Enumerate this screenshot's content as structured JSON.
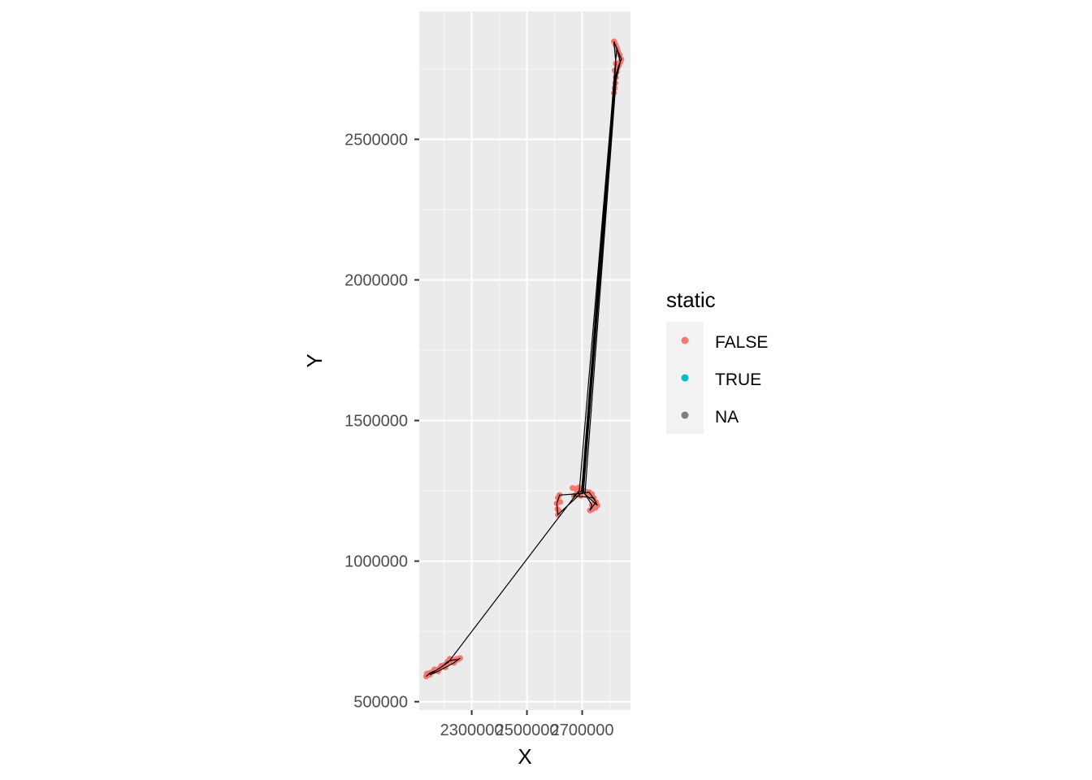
{
  "chart_data": {
    "type": "scatter",
    "xlabel": "X",
    "ylabel": "Y",
    "xlim": [
      2110000,
      2875000
    ],
    "ylim": [
      470000,
      2955000
    ],
    "x_ticks": [
      2300000,
      2500000,
      2700000
    ],
    "y_ticks": [
      500000,
      1000000,
      1500000,
      2000000,
      2500000
    ],
    "x_tick_labels": [
      "2300000",
      "2500000",
      "2700000"
    ],
    "y_tick_labels": [
      "500000",
      "1000000",
      "1500000",
      "2000000",
      "2500000"
    ],
    "grid": true,
    "legend": {
      "title": "static",
      "position": "right",
      "entries": [
        {
          "label": "FALSE",
          "color": "#F8766D"
        },
        {
          "label": "TRUE",
          "color": "#00BFC4"
        },
        {
          "label": "NA",
          "color": "#7F7F7F"
        }
      ]
    },
    "point_color": "#F8766D",
    "path_color": "#000000",
    "series": [
      {
        "static": "FALSE",
        "points": [
          [
            2135000,
            590000
          ],
          [
            2142000,
            598000
          ],
          [
            2150000,
            603000
          ],
          [
            2160000,
            607000
          ],
          [
            2172000,
            612000
          ],
          [
            2183000,
            618000
          ],
          [
            2192000,
            624000
          ],
          [
            2200000,
            630000
          ],
          [
            2212000,
            642000
          ],
          [
            2220000,
            652000
          ],
          [
            2230000,
            648000
          ],
          [
            2240000,
            645000
          ],
          [
            2250000,
            650000
          ],
          [
            2258000,
            655000
          ],
          [
            2235000,
            638000
          ],
          [
            2205000,
            622000
          ],
          [
            2178000,
            608000
          ],
          [
            2148000,
            596000
          ],
          [
            2138000,
            600000
          ],
          [
            2165000,
            615000
          ],
          [
            2190000,
            628000
          ],
          [
            2215000,
            640000
          ],
          [
            2245000,
            652000
          ],
          [
            2612000,
            1165000
          ],
          [
            2610000,
            1185000
          ],
          [
            2608000,
            1205000
          ],
          [
            2612000,
            1225000
          ],
          [
            2618000,
            1235000
          ],
          [
            2620000,
            1210000
          ],
          [
            2615000,
            1180000
          ],
          [
            2665000,
            1260000
          ],
          [
            2675000,
            1258000
          ],
          [
            2688000,
            1262000
          ],
          [
            2700000,
            1255000
          ],
          [
            2712000,
            1248000
          ],
          [
            2725000,
            1245000
          ],
          [
            2735000,
            1238000
          ],
          [
            2742000,
            1225000
          ],
          [
            2750000,
            1210000
          ],
          [
            2755000,
            1198000
          ],
          [
            2748000,
            1190000
          ],
          [
            2738000,
            1185000
          ],
          [
            2728000,
            1180000
          ],
          [
            2735000,
            1200000
          ],
          [
            2718000,
            1235000
          ],
          [
            2705000,
            1248000
          ],
          [
            2690000,
            1252000
          ],
          [
            2680000,
            1240000
          ],
          [
            2670000,
            1232000
          ],
          [
            2695000,
            1232000
          ],
          [
            2815000,
            2665000
          ],
          [
            2818000,
            2682000
          ],
          [
            2820000,
            2700000
          ],
          [
            2822000,
            2720000
          ],
          [
            2825000,
            2740000
          ],
          [
            2828000,
            2755000
          ],
          [
            2832000,
            2762000
          ],
          [
            2838000,
            2775000
          ],
          [
            2842000,
            2785000
          ],
          [
            2836000,
            2800000
          ],
          [
            2830000,
            2812000
          ],
          [
            2826000,
            2825000
          ],
          [
            2820000,
            2838000
          ],
          [
            2815000,
            2848000
          ],
          [
            2822000,
            2770000
          ],
          [
            2818000,
            2745000
          ]
        ]
      }
    ],
    "path": [
      [
        2135000,
        590000
      ],
      [
        2150000,
        603000
      ],
      [
        2172000,
        612000
      ],
      [
        2192000,
        624000
      ],
      [
        2212000,
        642000
      ],
      [
        2230000,
        648000
      ],
      [
        2250000,
        650000
      ],
      [
        2258000,
        655000
      ],
      [
        2235000,
        638000
      ],
      [
        2205000,
        622000
      ],
      [
        2178000,
        608000
      ],
      [
        2148000,
        596000
      ],
      [
        2215000,
        640000
      ],
      [
        2690000,
        1252000
      ],
      [
        2812000,
        2665000
      ],
      [
        2820000,
        2720000
      ],
      [
        2832000,
        2762000
      ],
      [
        2842000,
        2785000
      ],
      [
        2830000,
        2812000
      ],
      [
        2815000,
        2848000
      ],
      [
        2822000,
        2770000
      ],
      [
        2700000,
        1245000
      ],
      [
        2612000,
        1165000
      ],
      [
        2608000,
        1205000
      ],
      [
        2618000,
        1235000
      ],
      [
        2695000,
        1240000
      ],
      [
        2725000,
        1245000
      ],
      [
        2750000,
        1210000
      ],
      [
        2728000,
        1180000
      ],
      [
        2735000,
        1200000
      ],
      [
        2705000,
        1248000
      ],
      [
        2820000,
        2700000
      ],
      [
        2838000,
        2775000
      ],
      [
        2826000,
        2825000
      ],
      [
        2818000,
        2745000
      ],
      [
        2698000,
        1250000
      ],
      [
        2670000,
        1232000
      ],
      [
        2742000,
        1225000
      ],
      [
        2755000,
        1198000
      ],
      [
        2710000,
        1238000
      ],
      [
        2825000,
        2740000
      ],
      [
        2815000,
        2665000
      ],
      [
        2702000,
        1242000
      ]
    ]
  }
}
